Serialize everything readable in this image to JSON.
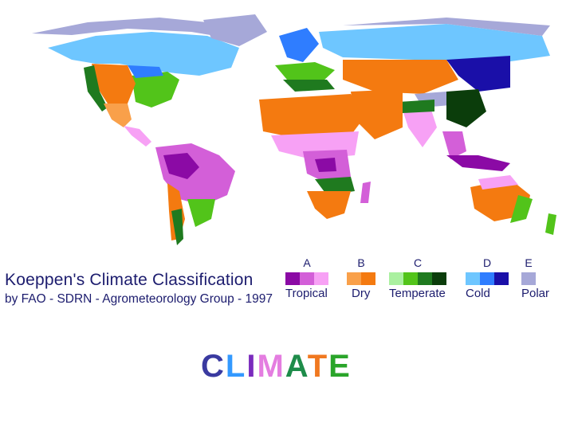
{
  "legend": {
    "title": "Koeppen's Climate Classification",
    "subtitle": "by FAO - SDRN - Agrometeorology Group - 1997",
    "groups": [
      {
        "letter": "A",
        "name": "Tropical",
        "colors": [
          "#8b0aa5",
          "#d35fd8",
          "#f7a1f5"
        ]
      },
      {
        "letter": "B",
        "name": "Dry",
        "colors": [
          "#f9a04a",
          "#f47a10"
        ]
      },
      {
        "letter": "C",
        "name": "Temperate",
        "colors": [
          "#aaf0a0",
          "#52c41a",
          "#1f7a1f",
          "#0b3d0b"
        ]
      },
      {
        "letter": "D",
        "name": "Cold",
        "colors": [
          "#6ec6ff",
          "#2f7dff",
          "#1a0fa8"
        ]
      },
      {
        "letter": "E",
        "name": "Polar",
        "colors": [
          "#a6a8d8"
        ]
      }
    ]
  },
  "heading": {
    "letters": [
      {
        "char": "C",
        "color": "#3a3aa0"
      },
      {
        "char": "L",
        "color": "#3399ff"
      },
      {
        "char": "I",
        "color": "#7a2bbd"
      },
      {
        "char": "M",
        "color": "#e47de0"
      },
      {
        "char": "A",
        "color": "#1e8c4a"
      },
      {
        "char": "T",
        "color": "#f07820"
      },
      {
        "char": "E",
        "color": "#2aa52a"
      }
    ]
  }
}
